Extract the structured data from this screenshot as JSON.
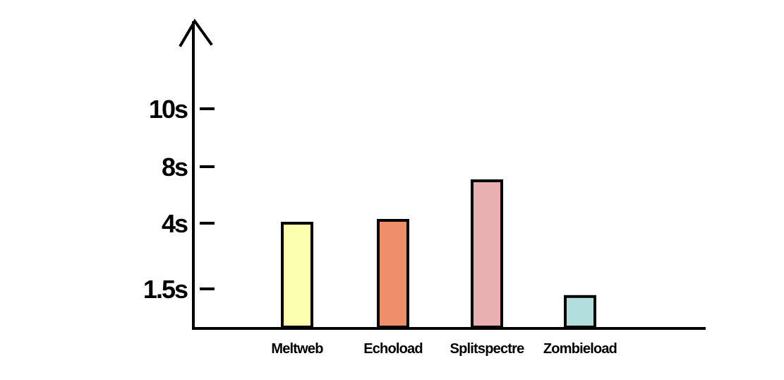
{
  "chart_data": {
    "type": "bar",
    "title": "",
    "xlabel": "",
    "ylabel": "",
    "categories": [
      "Meltweb",
      "Echoload",
      "Splitspectre",
      "Zombieload"
    ],
    "values": [
      4,
      4.2,
      7,
      1.2
    ],
    "colors": [
      "#fcffb0",
      "#ef8e6b",
      "#e8b0b0",
      "#b3dede"
    ],
    "y_ticks": [
      {
        "label": "1.5s",
        "value": 1.5
      },
      {
        "label": "4s",
        "value": 4
      },
      {
        "label": "8s",
        "value": 8
      },
      {
        "label": "10s",
        "value": 10
      }
    ],
    "y_tick_values": [
      1.5,
      4,
      8,
      10
    ],
    "ylim": [
      0,
      10
    ],
    "grid": false,
    "legend": "none"
  }
}
